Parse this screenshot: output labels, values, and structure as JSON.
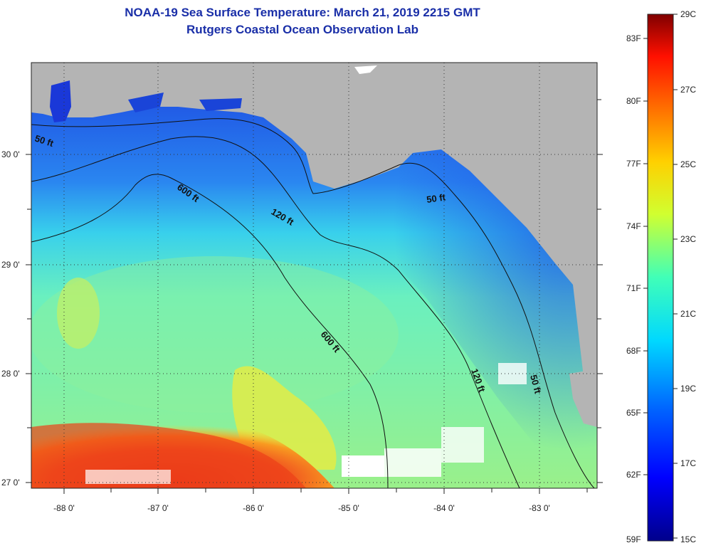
{
  "header": {
    "title": "NOAA-19 Sea Surface Temperature:  March 21, 2019 2215 GMT",
    "subtitle": "Rutgers Coastal Ocean Observation Lab"
  },
  "axes": {
    "longitudes": [
      "-88 0'",
      "-87 0'",
      "-86 0'",
      "-85 0'",
      "-84 0'",
      "-83 0'"
    ],
    "latitudes": [
      "30 0'",
      "29 0'",
      "28 0'",
      "27 0'"
    ]
  },
  "contours": {
    "c50a": "50 ft",
    "c50b": "50 ft",
    "c50c": "50 ft",
    "c120a": "120 ft",
    "c120b": "120 ft",
    "c600a": "600 ft",
    "c600b": "600 ft"
  },
  "colorbar": {
    "fahrenheit": [
      "83F",
      "80F",
      "77F",
      "74F",
      "71F",
      "68F",
      "65F",
      "62F",
      "59F"
    ],
    "celsius": [
      "29C",
      "27C",
      "25C",
      "23C",
      "21C",
      "19C",
      "17C",
      "15C"
    ]
  },
  "colors": {
    "land": "#b4b4b4",
    "title": "#1a2fa8",
    "warm": "#e83a10",
    "cool": "#1d4fe6"
  }
}
